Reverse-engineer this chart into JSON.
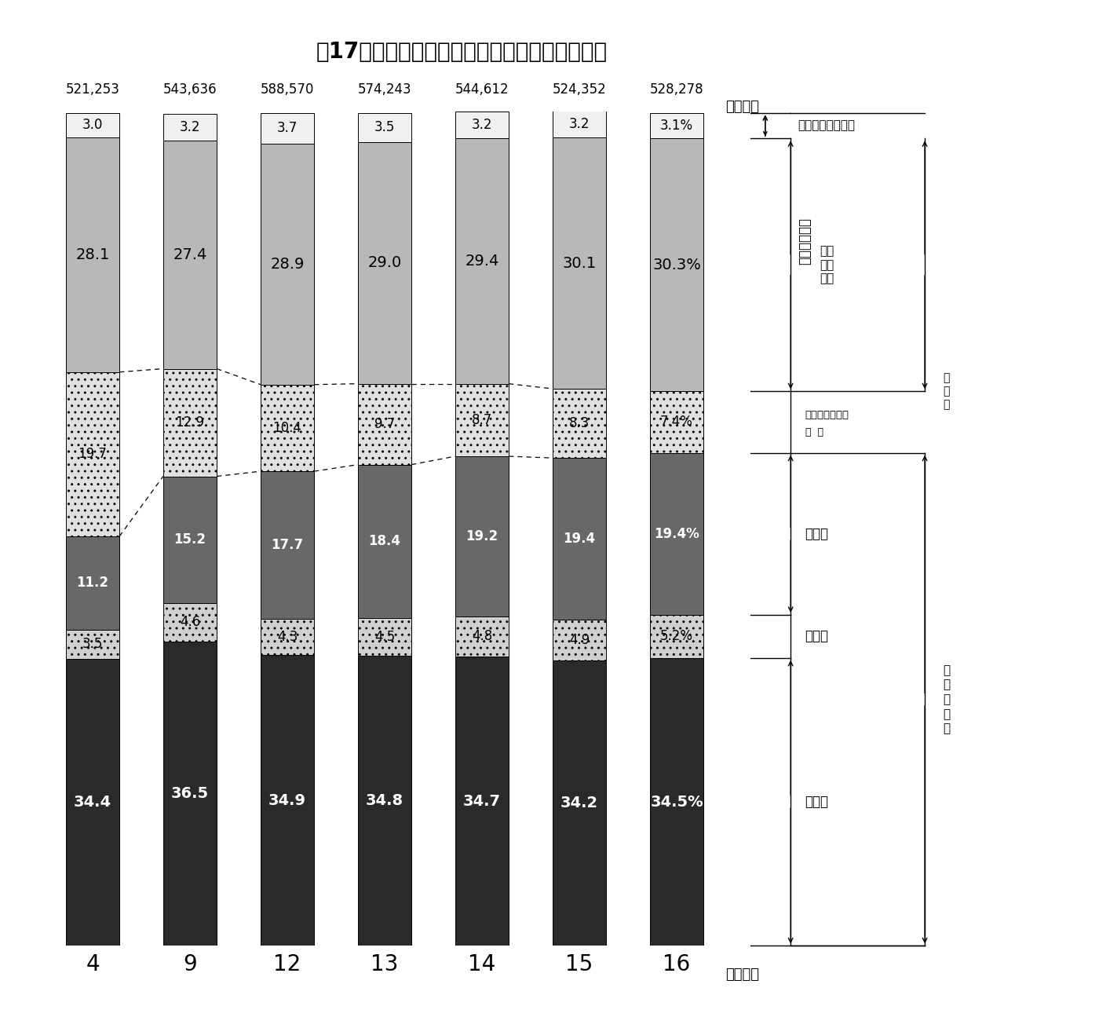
{
  "title": "第17図　一般財源充当額の性質別構成比の推移",
  "years": [
    "4",
    "9",
    "12",
    "13",
    "14",
    "15",
    "16"
  ],
  "totals": [
    "521,253",
    "543,636",
    "588,570",
    "574,243",
    "544,612",
    "524,352",
    "528,278"
  ],
  "segments": {
    "jinkenhi": [
      34.4,
      36.5,
      34.9,
      34.8,
      34.7,
      34.2,
      34.5
    ],
    "fujohi": [
      3.5,
      4.6,
      4.3,
      4.5,
      4.8,
      4.9,
      5.2
    ],
    "kokaihi": [
      11.2,
      15.2,
      17.7,
      18.4,
      19.2,
      19.4,
      19.4
    ],
    "toshiteki": [
      19.7,
      12.9,
      10.4,
      9.7,
      8.7,
      8.3,
      7.4
    ],
    "sonota": [
      28.1,
      27.4,
      28.9,
      29.0,
      29.4,
      30.1,
      30.3
    ],
    "kurikoshi": [
      3.0,
      3.2,
      3.7,
      3.5,
      3.2,
      3.2,
      3.1
    ]
  },
  "labels": {
    "jinkenhi": [
      "34.4",
      "36.5",
      "34.9",
      "34.8",
      "34.7",
      "34.2",
      "34.5%"
    ],
    "fujohi": [
      "3.5",
      "4.6",
      "4.3",
      "4.5",
      "4.8",
      "4.9",
      "5.2%"
    ],
    "kokaihi": [
      "11.2",
      "15.2",
      "17.7",
      "18.4",
      "19.2",
      "19.4",
      "19.4%"
    ],
    "toshiteki": [
      "19.7",
      "12.9",
      "10.4",
      "9.7",
      "8.7",
      "8.3",
      "7.4%"
    ],
    "sonota": [
      "28.1",
      "27.4",
      "28.9",
      "29.0",
      "29.4",
      "30.1",
      "30.3%"
    ],
    "kurikoshi": [
      "3.0",
      "3.2",
      "3.7",
      "3.5",
      "3.2",
      "3.2",
      "3.1%"
    ]
  },
  "seg_colors": {
    "jinkenhi": "#2a2a2a",
    "fujohi": "#d0d0d0",
    "kokaihi": "#686868",
    "toshiteki": "#e0e0e0",
    "sonota": "#b8b8b8",
    "kurikoshi": "#f0f0f0"
  },
  "seg_hatches": {
    "jinkenhi": "",
    "fujohi": "..",
    "kokaihi": "",
    "toshiteki": "..",
    "sonota": "",
    "kurikoshi": ""
  },
  "text_colors": {
    "jinkenhi": "white",
    "fujohi": "black",
    "kokaihi": "white",
    "toshiteki": "black",
    "sonota": "black",
    "kurikoshi": "black"
  },
  "background": "#ffffff",
  "bar_width": 0.55,
  "ylim": [
    0,
    100
  ]
}
